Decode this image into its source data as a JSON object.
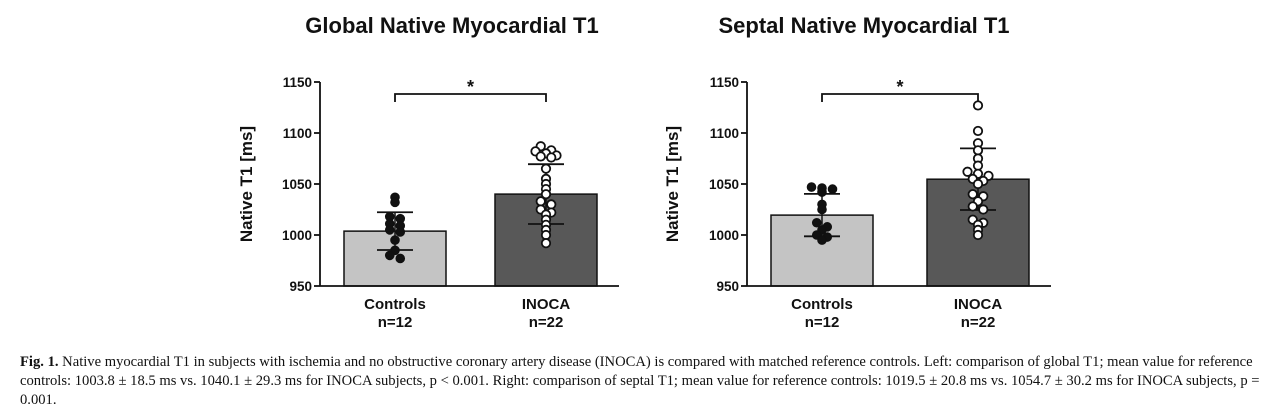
{
  "chart_data": [
    {
      "type": "bar",
      "title": "Global Native Myocardial T1",
      "ylabel": "Native T1 [ms]",
      "ylim": [
        950,
        1150
      ],
      "yticks": [
        950,
        1000,
        1050,
        1100,
        1150
      ],
      "categories": [
        "Controls",
        "INOCA"
      ],
      "category_n": [
        "n=12",
        "n=22"
      ],
      "colors": [
        "#c4c4c4",
        "#585858"
      ],
      "significance": "*",
      "series": [
        {
          "values": [
            1003.8,
            1040.1
          ],
          "error": [
            18.5,
            29.3
          ]
        }
      ],
      "points": [
        [
          1037,
          1032,
          1018,
          1016,
          1011,
          1009,
          1005,
          1003,
          995,
          985,
          980,
          977
        ],
        [
          1087,
          1083,
          1082,
          1080,
          1078,
          1077,
          1076,
          1065,
          1055,
          1050,
          1045,
          1040,
          1033,
          1030,
          1025,
          1022,
          1020,
          1015,
          1010,
          1005,
          1000,
          992
        ]
      ]
    },
    {
      "type": "bar",
      "title": "Septal Native Myocardial T1",
      "ylabel": "Native T1 [ms]",
      "ylim": [
        950,
        1150
      ],
      "yticks": [
        950,
        1000,
        1050,
        1100,
        1150
      ],
      "categories": [
        "Controls",
        "INOCA"
      ],
      "category_n": [
        "n=12",
        "n=22"
      ],
      "colors": [
        "#c4c4c4",
        "#585858"
      ],
      "significance": "*",
      "series": [
        {
          "values": [
            1019.5,
            1054.7
          ],
          "error": [
            20.8,
            30.2
          ]
        }
      ],
      "points": [
        [
          1047,
          1046,
          1045,
          1042,
          1030,
          1025,
          1012,
          1008,
          1005,
          1000,
          998,
          995
        ],
        [
          1127,
          1102,
          1090,
          1083,
          1075,
          1068,
          1062,
          1060,
          1058,
          1055,
          1053,
          1050,
          1040,
          1038,
          1033,
          1028,
          1025,
          1015,
          1012,
          1010,
          1005,
          1000
        ]
      ]
    }
  ],
  "caption": {
    "label": "Fig. 1.",
    "text": "Native myocardial T1 in subjects with ischemia and no obstructive coronary artery disease (INOCA) is compared with matched reference controls. Left: comparison of global T1; mean value for reference controls: 1003.8 ± 18.5 ms vs. 1040.1 ± 29.3 ms for INOCA subjects, p < 0.001. Right: comparison of septal T1; mean value for reference controls: 1019.5 ± 20.8 ms vs. 1054.7 ± 30.2 ms for INOCA subjects, p = 0.001."
  }
}
